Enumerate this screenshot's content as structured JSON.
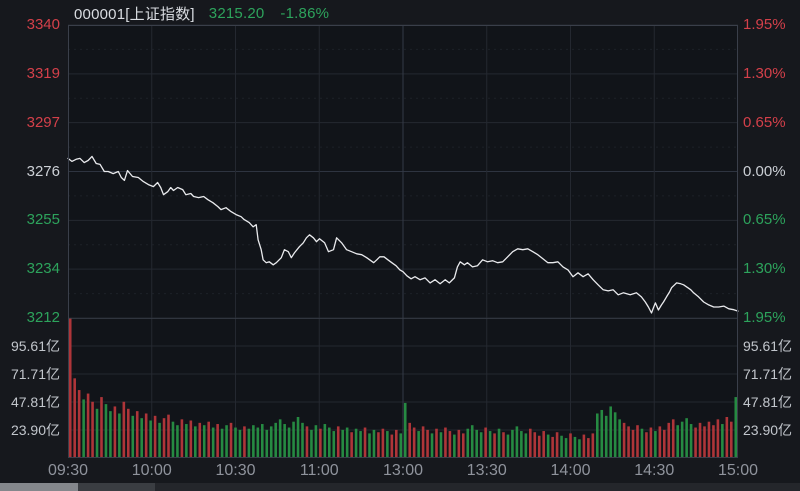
{
  "header": {
    "code_label": "000001[上证指数]",
    "price": "3215.20",
    "change_pct": "-1.86%"
  },
  "colors": {
    "up": "#d4404a",
    "down": "#2da35c",
    "neutral": "#ccd0d6",
    "line": "#e9eaed",
    "bar_up": "#ae3539",
    "bar_down": "#268a42",
    "grid": "#242830",
    "grid_sub": "#1d2128",
    "grid_mid": "#343a46",
    "grid_zero": "#2e3440",
    "border": "#3a3f4a",
    "plot_bg": "#111419",
    "time_text": "#8f939c",
    "vol_text": "#c2c6cc"
  },
  "price_axis": {
    "labels": [
      "3340",
      "3319",
      "3297",
      "3276",
      "3255",
      "3234",
      "3212"
    ],
    "tones": [
      "up",
      "up",
      "up",
      "neutral",
      "down",
      "down",
      "down"
    ]
  },
  "pct_axis": {
    "labels": [
      "1.95%",
      "1.30%",
      "0.65%",
      "0.00%",
      "0.65%",
      "1.30%",
      "1.95%"
    ],
    "tones": [
      "up",
      "up",
      "up",
      "neutral",
      "down",
      "down",
      "down"
    ]
  },
  "volume_axis": {
    "labels": [
      "95.61亿",
      "71.71亿",
      "47.81亿",
      "23.90亿"
    ],
    "values": [
      95.61,
      71.71,
      47.81,
      23.9
    ]
  },
  "time_axis": {
    "labels": [
      "09:30",
      "10:00",
      "10:30",
      "11:00",
      "13:00",
      "13:30",
      "14:00",
      "14:30",
      "15:00"
    ],
    "minutes": [
      0,
      30,
      60,
      90,
      120,
      150,
      180,
      210,
      240
    ]
  },
  "chart_data": {
    "type": "line",
    "title": "000001 上证指数 分时走势",
    "prev_close": 3276.09,
    "last": 3215.2,
    "change_pct": -1.86,
    "ylim": [
      3212.2,
      3340.0
    ],
    "pct_range": [
      -1.95,
      1.95
    ],
    "session_minutes": 240,
    "lunch_break": "11:30-13:00",
    "grid_minutes": [
      30,
      60,
      90,
      120,
      150,
      180,
      210
    ],
    "price_series": {
      "t": [
        0,
        1.4,
        2.9,
        4.3,
        5.8,
        7.2,
        8.6,
        10.1,
        11.5,
        13,
        14.4,
        16.2,
        18,
        19.1,
        20.2,
        21.3,
        23.1,
        25.2,
        27,
        28.8,
        30.6,
        32.1,
        33.2,
        34.2,
        35.7,
        36.8,
        37.8,
        39.3,
        41.1,
        42.2,
        44,
        45,
        46.8,
        48.6,
        50.1,
        51.9,
        53.7,
        54.8,
        56.6,
        58.4,
        60.2,
        62,
        63.1,
        64.9,
        66.3,
        67.4,
        68.1,
        69.2,
        69.9,
        71,
        72.1,
        73.5,
        74.6,
        76.4,
        77.5,
        78.9,
        80,
        81.1,
        82.9,
        84.3,
        85.4,
        86.5,
        87.9,
        89,
        90.1,
        91.9,
        93.3,
        95.1,
        96.2,
        98,
        99.8,
        101.6,
        103.4,
        105.2,
        107,
        108.5,
        109.5,
        110.6,
        111.7,
        113.2,
        114.6,
        116,
        117.5,
        118.9,
        120,
        121.4,
        122.9,
        124.3,
        126.1,
        127.9,
        129.7,
        131.5,
        133.3,
        135.1,
        136.6,
        138.4,
        139.5,
        140.5,
        142,
        143.1,
        144.9,
        146.7,
        148.5,
        150.3,
        152.1,
        153.9,
        155.7,
        157.5,
        159.3,
        161.1,
        162.9,
        164.7,
        166.5,
        168.3,
        170.1,
        171.9,
        173.7,
        175.5,
        177.3,
        179.1,
        180.9,
        182.7,
        184.5,
        186.3,
        188.1,
        189.9,
        191.7,
        193.5,
        195.3,
        197.1,
        198.9,
        201.4,
        203.6,
        205.4,
        206.8,
        207.9,
        209,
        209.7,
        210.4,
        211.5,
        212.6,
        213.3,
        214.4,
        215.5,
        216.2,
        217.3,
        218,
        219.5,
        220.5,
        222,
        223.1,
        224.1,
        225.9,
        227.7,
        229.5,
        231.3,
        233.1,
        234.9,
        236.7,
        238.5,
        240
      ],
      "p": [
        3281.8,
        3280.5,
        3281.4,
        3281.8,
        3280,
        3280.9,
        3282.7,
        3279.6,
        3279.2,
        3276.1,
        3276.1,
        3275.2,
        3276.1,
        3273.5,
        3272.2,
        3276.5,
        3273.9,
        3273.5,
        3271.7,
        3270.4,
        3269.5,
        3271.3,
        3269.1,
        3266,
        3267.3,
        3269.1,
        3267.8,
        3269.1,
        3268.2,
        3266,
        3266.5,
        3265.2,
        3264.7,
        3265.2,
        3263.8,
        3262.5,
        3260.8,
        3259.5,
        3260.3,
        3258.6,
        3257.3,
        3256.4,
        3255.1,
        3253.8,
        3252,
        3252.9,
        3246.3,
        3242,
        3237.6,
        3236.3,
        3236.7,
        3235.4,
        3236.3,
        3238.5,
        3242,
        3241.1,
        3238.5,
        3240.6,
        3243.3,
        3245,
        3247.2,
        3248.5,
        3247.2,
        3245.5,
        3246.8,
        3245,
        3241.1,
        3242,
        3247.2,
        3245,
        3242,
        3241.1,
        3240.2,
        3239.8,
        3238.5,
        3237.2,
        3236.3,
        3237.6,
        3238.9,
        3238.9,
        3237.6,
        3236.3,
        3235,
        3233.2,
        3232.4,
        3230.6,
        3229.3,
        3230.2,
        3228.9,
        3229.7,
        3227.5,
        3228.9,
        3227.1,
        3228.9,
        3227.5,
        3229.7,
        3234.5,
        3236.7,
        3235.4,
        3236.3,
        3234.5,
        3235,
        3237.6,
        3236.7,
        3237.2,
        3236.3,
        3236.7,
        3238.9,
        3241.1,
        3242.4,
        3242,
        3242.4,
        3241.1,
        3239.8,
        3238,
        3236.3,
        3236.3,
        3236.7,
        3234.5,
        3233.2,
        3230.2,
        3231.9,
        3230.2,
        3231.5,
        3228.9,
        3226.7,
        3224.5,
        3224,
        3224.5,
        3222.3,
        3223.2,
        3222.3,
        3223.2,
        3221.4,
        3219.2,
        3217,
        3214.4,
        3216.6,
        3218.8,
        3215.7,
        3217.9,
        3219.2,
        3221.4,
        3223.6,
        3225.4,
        3226.7,
        3227.5,
        3227.1,
        3226.7,
        3225.4,
        3224.5,
        3223.2,
        3221.4,
        3219.2,
        3217.9,
        3217,
        3217,
        3217.4,
        3216.2,
        3215.8,
        3215.2
      ]
    },
    "volume": {
      "unit": "亿",
      "vmax": 119.5,
      "t_step_minutes": 1.6,
      "values": [
        125,
        68,
        58,
        50,
        55,
        48,
        42,
        52,
        46,
        40,
        44,
        38,
        48,
        42,
        36,
        40,
        34,
        38,
        32,
        36,
        30,
        34,
        37,
        31,
        28,
        33,
        29,
        32,
        27,
        30,
        28,
        31,
        26,
        29,
        25,
        28,
        30,
        26,
        24,
        27,
        25,
        28,
        26,
        29,
        24,
        27,
        30,
        33,
        29,
        26,
        31,
        35,
        30,
        27,
        24,
        28,
        25,
        29,
        26,
        23,
        27,
        24,
        26,
        22,
        25,
        23,
        26,
        21,
        24,
        22,
        25,
        23,
        20,
        24,
        21,
        47,
        30,
        26,
        23,
        27,
        24,
        21,
        25,
        22,
        26,
        23,
        20,
        24,
        21,
        25,
        28,
        24,
        22,
        26,
        23,
        21,
        25,
        22,
        20,
        24,
        27,
        23,
        21,
        25,
        22,
        19,
        23,
        20,
        18,
        22,
        19,
        17,
        21,
        18,
        16,
        20,
        17,
        21,
        38,
        41,
        36,
        44,
        39,
        33,
        30,
        27,
        24,
        28,
        25,
        22,
        26,
        23,
        27,
        24,
        30,
        33,
        28,
        31,
        34,
        29,
        26,
        30,
        27,
        31,
        28,
        33,
        29,
        35,
        31,
        52
      ],
      "updown": "rrrgrrgrggrgrrgrgrgrgrrggrgrgrgrgrggrggrgggggggggggggrggrgggrggrggrggrrgrrggrrgrrgrgrrgrrggggrgrgrgggggrrrrgrrggrggrrrggggggrrrrgrrgrrrrggggrrrrrrgrrg"
    }
  }
}
